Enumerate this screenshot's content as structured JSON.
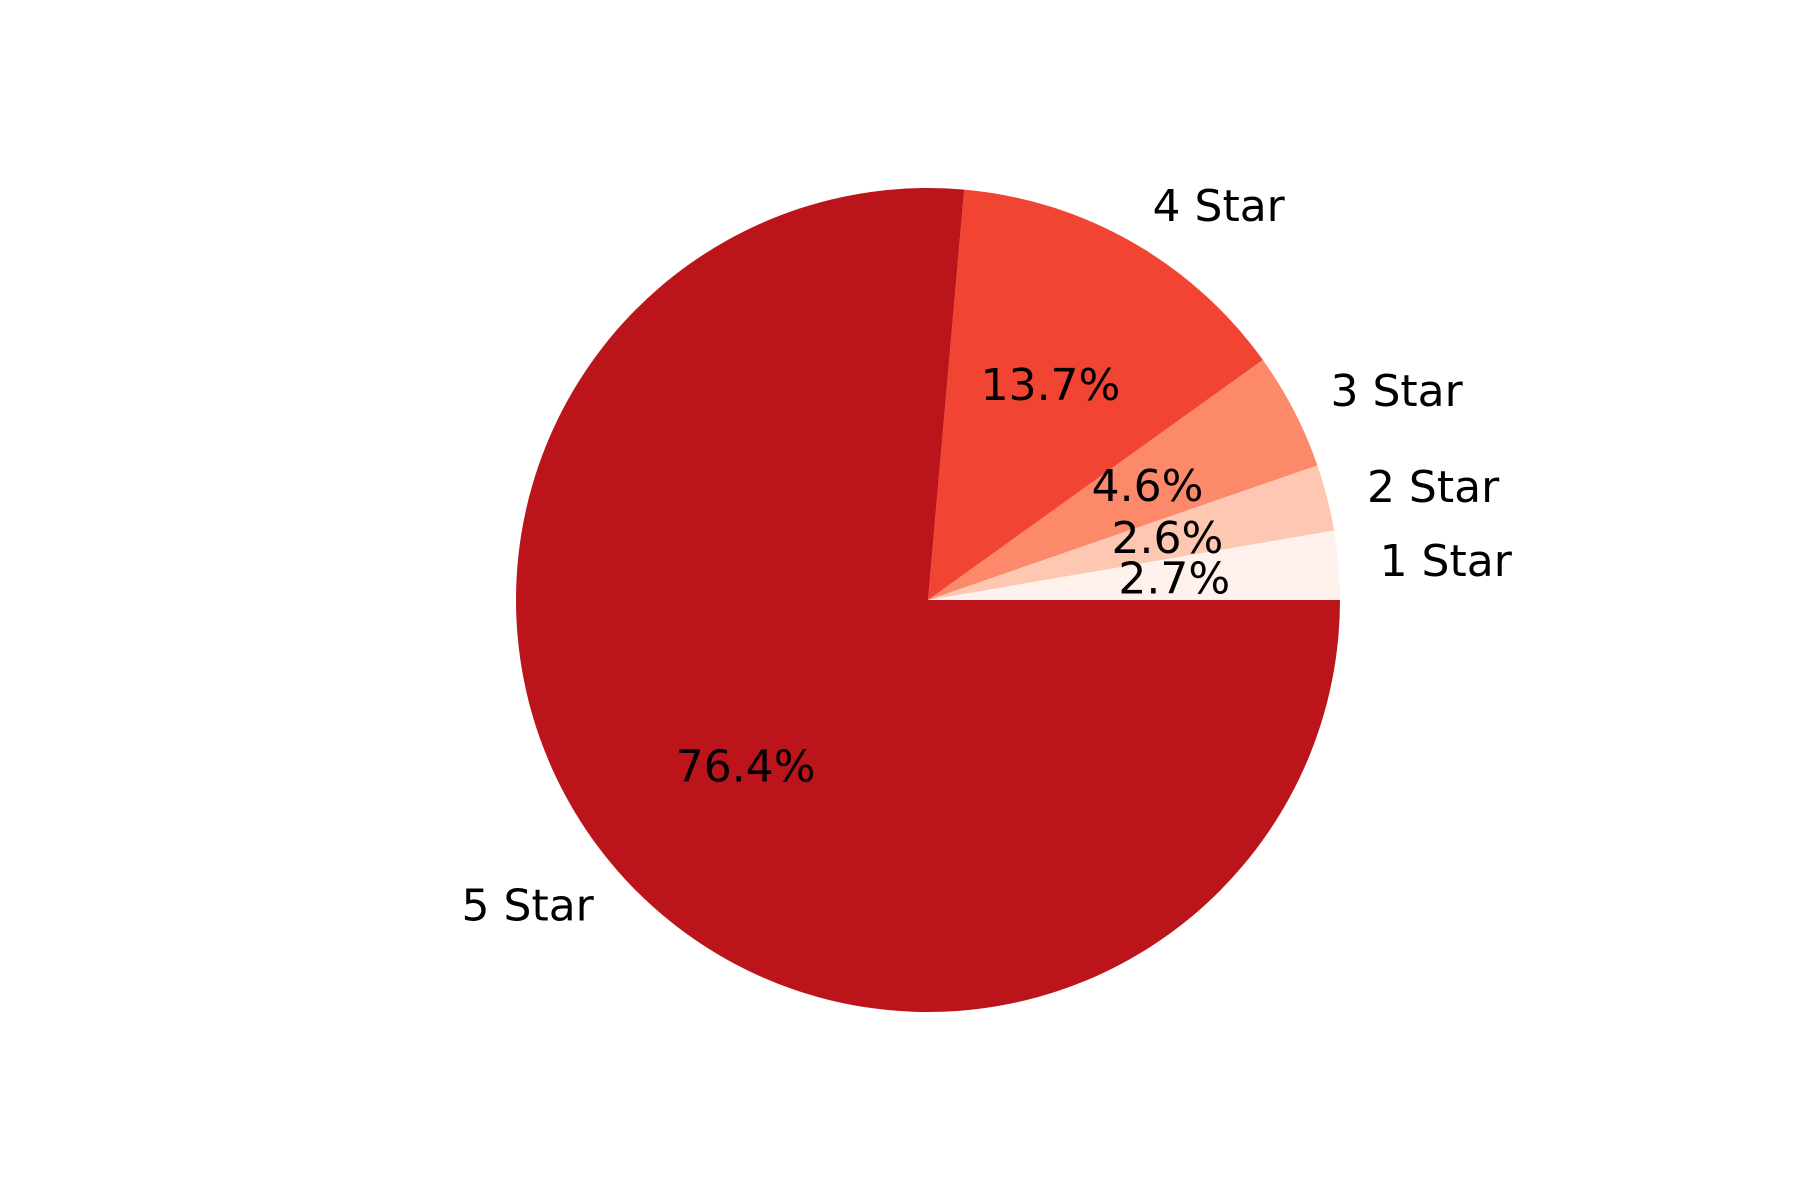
{
  "chart_data": {
    "type": "pie",
    "start_angle_deg": 0,
    "direction": "counterclockwise",
    "slices": [
      {
        "label": "1 Star",
        "value": 2.7,
        "pct_label": "2.7%",
        "color": "#fff1ec"
      },
      {
        "label": "2 Star",
        "value": 2.6,
        "pct_label": "2.6%",
        "color": "#fdc7b1"
      },
      {
        "label": "3 Star",
        "value": 4.6,
        "pct_label": "4.6%",
        "color": "#fc8a6a"
      },
      {
        "label": "4 Star",
        "value": 13.7,
        "pct_label": "13.7%",
        "color": "#f14432"
      },
      {
        "label": "5 Star",
        "value": 76.4,
        "pct_label": "76.4%",
        "color": "#bb141b"
      }
    ]
  }
}
